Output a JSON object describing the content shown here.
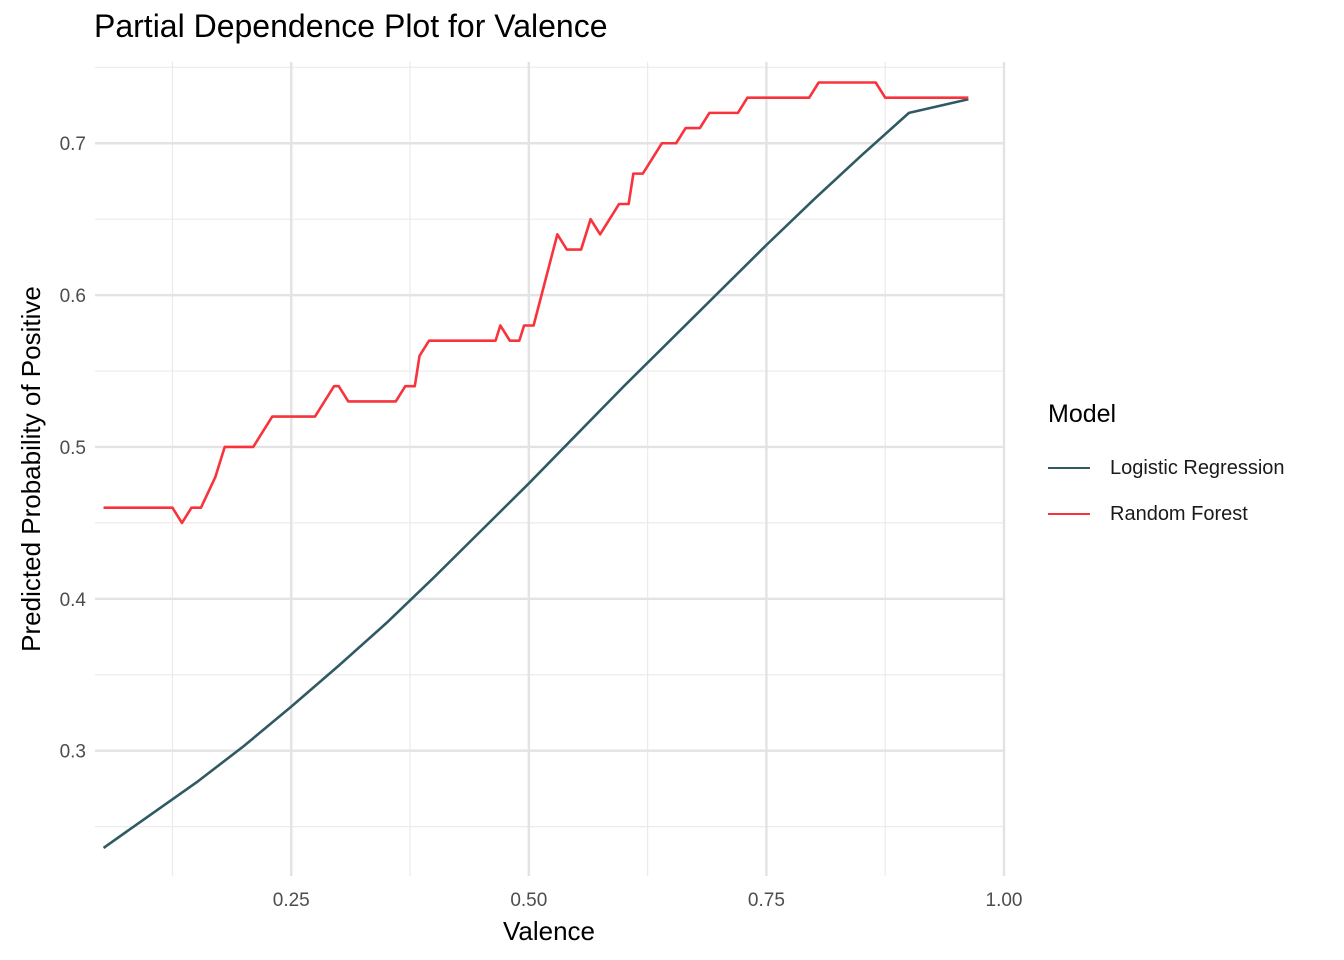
{
  "chart_data": {
    "type": "line",
    "title": "Partial Dependence Plot for Valence",
    "xlabel": "Valence",
    "ylabel": "Predicted Probability of Positive",
    "xlim": [
      0.0435,
      1.0
    ],
    "ylim": [
      0.2175,
      0.7535
    ],
    "x_ticks": [
      0.25,
      0.5,
      0.75,
      1.0
    ],
    "x_tick_labels": [
      "0.25",
      "0.50",
      "0.75",
      "1.00"
    ],
    "y_ticks": [
      0.3,
      0.4,
      0.5,
      0.6,
      0.7
    ],
    "y_tick_labels": [
      "0.3",
      "0.4",
      "0.5",
      "0.6",
      "0.7"
    ],
    "grid": true,
    "legend": {
      "title": "Model",
      "position": "right"
    },
    "series": [
      {
        "name": "Logistic Regression",
        "color": "#2f5a64",
        "x": [
          0.0525,
          0.1,
          0.15,
          0.2,
          0.25,
          0.3,
          0.35,
          0.4,
          0.45,
          0.5,
          0.55,
          0.6,
          0.65,
          0.7,
          0.75,
          0.8,
          0.85,
          0.9,
          0.9625
        ],
        "y": [
          0.236,
          0.257,
          0.279,
          0.303,
          0.329,
          0.356,
          0.384,
          0.414,
          0.445,
          0.476,
          0.508,
          0.54,
          0.571,
          0.602,
          0.633,
          0.663,
          0.692,
          0.72,
          0.729
        ]
      },
      {
        "name": "Random Forest",
        "color": "#f8333c",
        "x": [
          0.0525,
          0.125,
          0.135,
          0.145,
          0.155,
          0.17,
          0.18,
          0.21,
          0.23,
          0.275,
          0.295,
          0.3,
          0.31,
          0.36,
          0.37,
          0.38,
          0.385,
          0.395,
          0.465,
          0.47,
          0.48,
          0.49,
          0.495,
          0.505,
          0.53,
          0.54,
          0.555,
          0.565,
          0.575,
          0.595,
          0.605,
          0.61,
          0.62,
          0.64,
          0.655,
          0.665,
          0.68,
          0.69,
          0.705,
          0.72,
          0.73,
          0.795,
          0.805,
          0.865,
          0.875,
          0.9625
        ],
        "y": [
          0.46,
          0.46,
          0.45,
          0.46,
          0.46,
          0.48,
          0.5,
          0.5,
          0.52,
          0.52,
          0.54,
          0.54,
          0.53,
          0.53,
          0.54,
          0.54,
          0.56,
          0.57,
          0.57,
          0.58,
          0.57,
          0.57,
          0.58,
          0.58,
          0.64,
          0.63,
          0.63,
          0.65,
          0.64,
          0.66,
          0.66,
          0.68,
          0.68,
          0.7,
          0.7,
          0.71,
          0.71,
          0.72,
          0.72,
          0.72,
          0.73,
          0.73,
          0.74,
          0.74,
          0.73,
          0.73
        ]
      }
    ]
  }
}
